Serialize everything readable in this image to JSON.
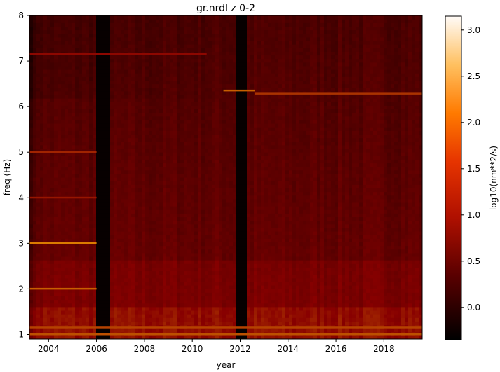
{
  "chart_data": {
    "type": "heatmap",
    "title": "gr.nrdl z 0-2",
    "xlabel": "year",
    "ylabel": "freq (Hz)",
    "xlim": [
      2003.2,
      2019.6
    ],
    "ylim": [
      0.9,
      8
    ],
    "x_ticks": [
      2004,
      2006,
      2008,
      2010,
      2012,
      2014,
      2016,
      2018
    ],
    "y_ticks": [
      1,
      2,
      3,
      4,
      5,
      6,
      7,
      8
    ],
    "colorbar": {
      "label": "log10(nm**2/s)",
      "range": [
        -0.35,
        3.15
      ],
      "ticks": [
        "0.0",
        "0.5",
        "1.0",
        "1.5",
        "2.0",
        "2.5",
        "3.0"
      ],
      "tick_values": [
        0.0,
        0.5,
        1.0,
        1.5,
        2.0,
        2.5,
        3.0
      ],
      "colormap": "gist_heat"
    },
    "data_gaps": [
      {
        "start": 2006.0,
        "end": 2006.5
      },
      {
        "start": 2011.85,
        "end": 2012.25
      }
    ],
    "spectral_lines": [
      {
        "freq": 6.35,
        "start": 2011.3,
        "end": 2012.6,
        "value": 1.7
      },
      {
        "freq": 6.28,
        "start": 2012.6,
        "end": 2019.6,
        "value": 1.4
      },
      {
        "freq": 3.0,
        "start": 2003.2,
        "end": 2006.0,
        "value": 1.9
      },
      {
        "freq": 2.0,
        "start": 2003.2,
        "end": 2006.0,
        "value": 1.7
      },
      {
        "freq": 5.0,
        "start": 2003.2,
        "end": 2006.0,
        "value": 1.3
      },
      {
        "freq": 4.0,
        "start": 2003.2,
        "end": 2006.0,
        "value": 1.2
      },
      {
        "freq": 7.15,
        "start": 2003.2,
        "end": 2010.6,
        "value": 1.1
      },
      {
        "freq": 1.0,
        "start": 2003.2,
        "end": 2019.6,
        "value": 1.6
      },
      {
        "freq": 1.15,
        "start": 2003.2,
        "end": 2019.6,
        "value": 1.5
      }
    ],
    "grid": false
  }
}
